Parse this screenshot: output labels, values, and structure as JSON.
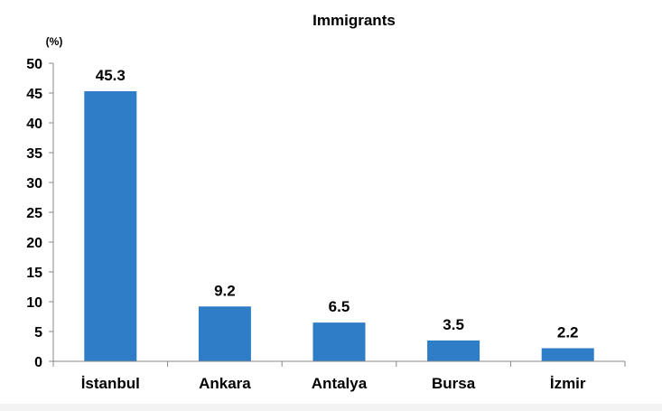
{
  "chart_data": {
    "type": "bar",
    "title": "Immigrants",
    "ylabel": "(%)",
    "xlabel": "",
    "categories": [
      "İstanbul",
      "Ankara",
      "Antalya",
      "Bursa",
      "İzmir"
    ],
    "values": [
      45.3,
      9.2,
      6.5,
      3.5,
      2.2
    ],
    "data_labels": [
      "45.3",
      "9.2",
      "6.5",
      "3.5",
      "2.2"
    ],
    "ylim": [
      0,
      50
    ],
    "yticks": [
      "0",
      "5",
      "10",
      "15",
      "20",
      "25",
      "30",
      "35",
      "40",
      "45",
      "50"
    ],
    "grid": false,
    "legend": "none",
    "bar_color": "#2e7dc6"
  }
}
